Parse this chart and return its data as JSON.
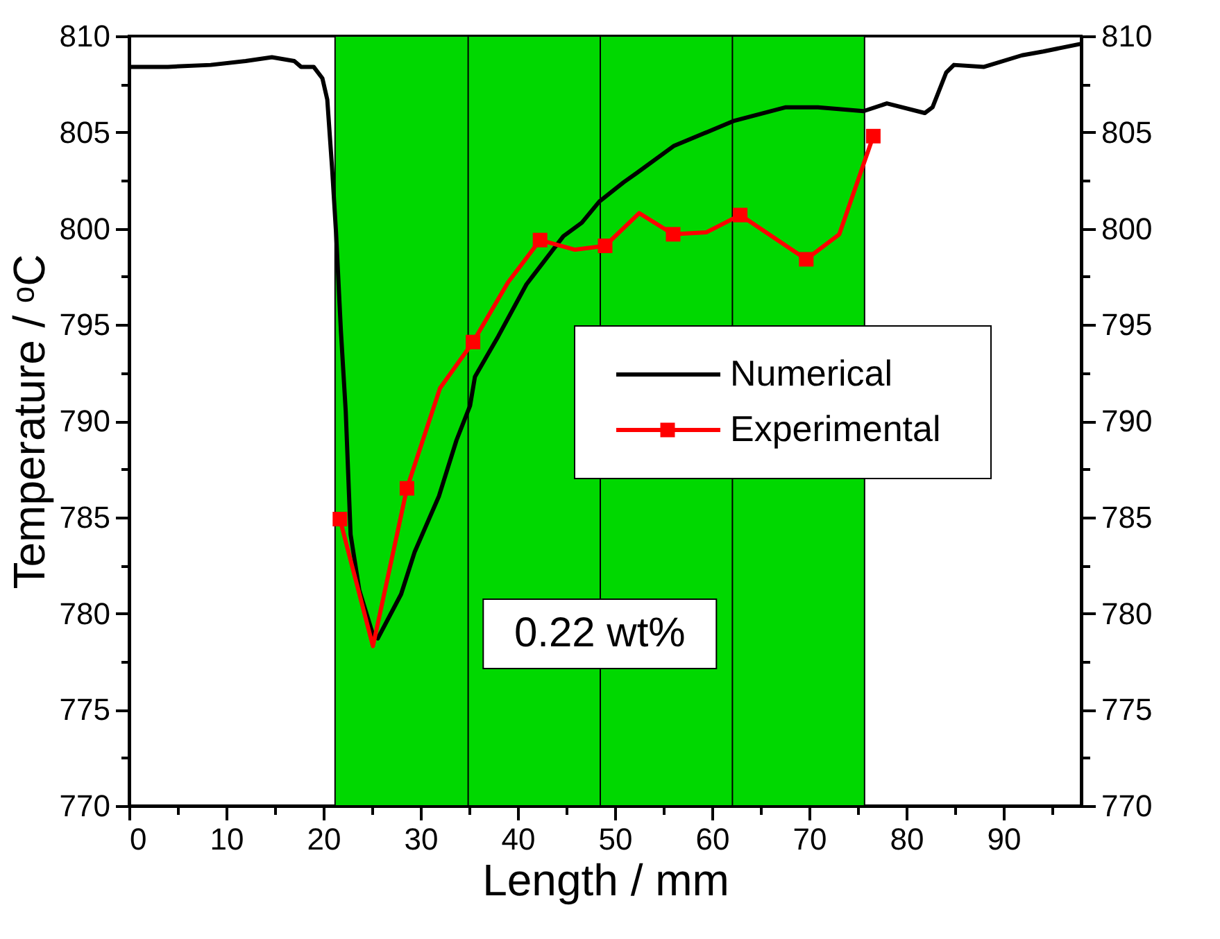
{
  "chart_data": {
    "type": "line",
    "xlabel": "Length / mm",
    "ylabel": "Temperature / ᵒC",
    "xlim": [
      0,
      98
    ],
    "xticks": [
      0,
      {
        "value": 5,
        "label": null
      },
      10,
      {
        "value": 15,
        "label": null
      },
      20,
      {
        "value": 25,
        "label": null
      },
      30,
      {
        "value": 35,
        "label": null
      },
      40,
      {
        "value": 45,
        "label": null
      },
      50,
      {
        "value": 55,
        "label": null
      },
      60,
      {
        "value": 65,
        "label": null
      },
      70,
      {
        "value": 75,
        "label": null
      },
      80,
      {
        "value": 85,
        "label": null
      },
      90,
      {
        "value": 95,
        "label": null
      }
    ],
    "ylim": [
      770,
      810
    ],
    "yticks": [
      770,
      {
        "value": 772.5,
        "label": null
      },
      775,
      {
        "value": 777.5,
        "label": null
      },
      780,
      {
        "value": 782.5,
        "label": null
      },
      785,
      {
        "value": 787.5,
        "label": null
      },
      790,
      {
        "value": 792.5,
        "label": null
      },
      795,
      {
        "value": 797.5,
        "label": null
      },
      800,
      {
        "value": 802.5,
        "label": null
      },
      805,
      {
        "value": 807.5,
        "label": null
      },
      810
    ],
    "y2lim": [
      770,
      810
    ],
    "y2ticks": [
      770,
      {
        "value": 772.5,
        "label": null
      },
      775,
      {
        "value": 777.5,
        "label": null
      },
      780,
      {
        "value": 782.5,
        "label": null
      },
      785,
      {
        "value": 787.5,
        "label": null
      },
      790,
      {
        "value": 792.5,
        "label": null
      },
      795,
      {
        "value": 797.5,
        "label": null
      },
      800,
      {
        "value": 802.5,
        "label": null
      },
      805,
      {
        "value": 807.5,
        "label": null
      },
      810
    ],
    "grid": false,
    "legend": "right",
    "bands": [
      {
        "axis": "x",
        "from": 21.2,
        "to": 75.7,
        "label": "0.22 wt%",
        "color": "#00d800"
      }
    ],
    "ref_lines": [
      {
        "axis": "x",
        "value": 34.9,
        "color": "#000000"
      },
      {
        "axis": "x",
        "value": 48.5,
        "color": "#000000"
      },
      {
        "axis": "x",
        "value": 62.1,
        "color": "#000000"
      }
    ],
    "series": [
      {
        "name": "Numerical",
        "color": "#000000",
        "marker": "none",
        "x": [
          0,
          4,
          8.4,
          12,
          14.7,
          17,
          17.7,
          19,
          19.9,
          20.4,
          20.9,
          21.3,
          21.8,
          22.3,
          22.8,
          23.7,
          25.1,
          25.6,
          28.0,
          29.4,
          31.9,
          33.7,
          35.1,
          35.6,
          38.0,
          40.9,
          44.7,
          46.6,
          48.4,
          50.9,
          52.3,
          56.1,
          62.3,
          67.6,
          70.9,
          75.6,
          78.0,
          81.9,
          82.7,
          84.1,
          84.9,
          88.0,
          91.9,
          94.1,
          98.0
        ],
        "values": [
          808.4,
          808.4,
          808.5,
          808.7,
          808.9,
          808.7,
          808.4,
          808.4,
          807.8,
          806.7,
          803.1,
          799.8,
          794.7,
          790.5,
          784.1,
          781.2,
          778.9,
          778.7,
          781.0,
          783.2,
          786.1,
          789.0,
          790.8,
          792.3,
          794.4,
          797.1,
          799.6,
          800.3,
          801.4,
          802.4,
          802.9,
          804.3,
          805.6,
          806.3,
          806.3,
          806.1,
          806.5,
          806.0,
          806.3,
          808.1,
          808.5,
          808.4,
          809.0,
          809.2,
          809.6
        ]
      },
      {
        "color": "#ff0000",
        "marker": "none",
        "x": [
          21.7,
          25.1,
          28.6,
          32.0,
          35.4,
          39.0,
          42.3,
          45.9,
          49.0,
          52.5,
          56.0,
          59.4,
          62.9,
          69.7,
          73.1,
          76.6
        ],
        "values": [
          784.9,
          778.3,
          786.5,
          791.7,
          794.1,
          797.2,
          799.4,
          798.9,
          799.1,
          800.8,
          799.7,
          799.8,
          800.7,
          798.4,
          799.7,
          804.8
        ]
      },
      {
        "name": "Experimental",
        "type": "scatter",
        "color": "#ff0000",
        "marker": "square",
        "x": [
          21.7,
          28.6,
          35.4,
          42.3,
          49.0,
          56.0,
          62.9,
          69.7,
          76.6
        ],
        "values": [
          784.9,
          786.5,
          794.1,
          799.4,
          799.1,
          799.7,
          800.7,
          798.4,
          804.8
        ]
      }
    ]
  }
}
